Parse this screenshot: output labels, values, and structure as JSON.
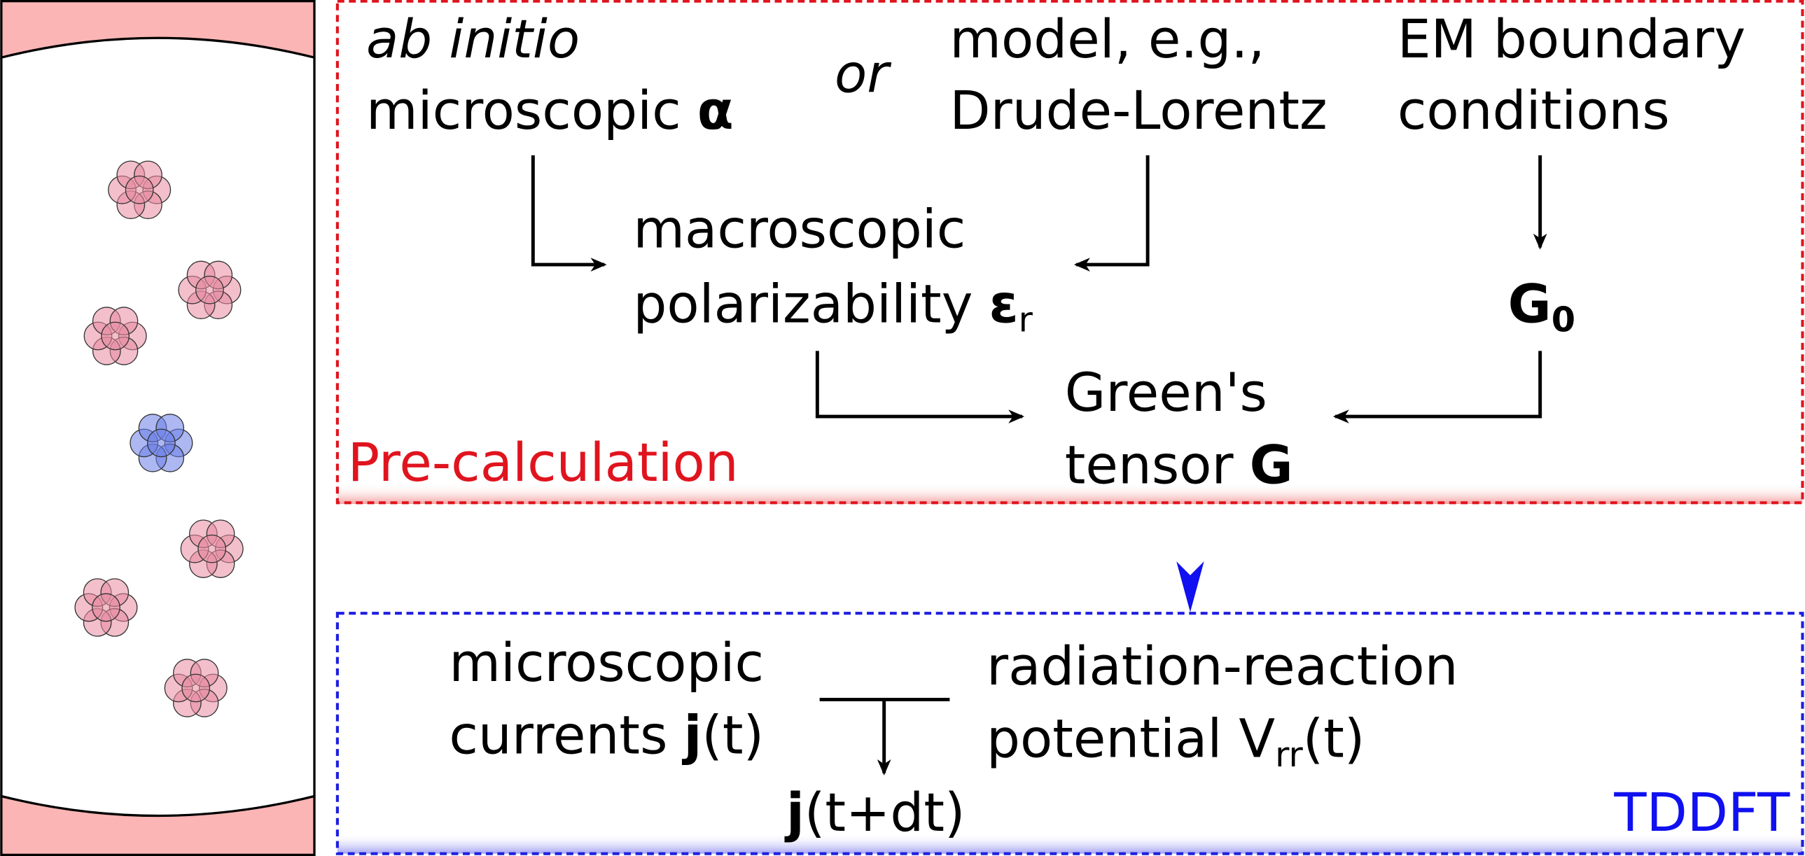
{
  "precalc": {
    "label": "Pre-calculation",
    "ab_initio": {
      "line1": "ab initio",
      "line2": "microscopic",
      "symbol": "α"
    },
    "or": "or",
    "model": {
      "line1": "model, e.g.,",
      "line2": "Drude-Lorentz"
    },
    "em": {
      "line1": "EM boundary",
      "line2": "conditions"
    },
    "polarizability": {
      "line1": "macroscopic",
      "line2": "polarizability",
      "symbol": "ε",
      "subscript": "r"
    },
    "g0": {
      "symbol": "G",
      "subscript": "0"
    },
    "greens": {
      "line1": "Green's",
      "line2": "tensor",
      "symbol": "G"
    }
  },
  "tddft": {
    "label": "TDDFT",
    "currents": {
      "line1": "microscopic",
      "line2": "currents",
      "symbol": "j",
      "suffix": "(t)"
    },
    "potential": {
      "line1": "radiation-reaction",
      "line2": "potential V",
      "subscript": "rr",
      "suffix": "(t)"
    },
    "result": {
      "symbol": "j",
      "suffix": "(t+dt)"
    }
  }
}
